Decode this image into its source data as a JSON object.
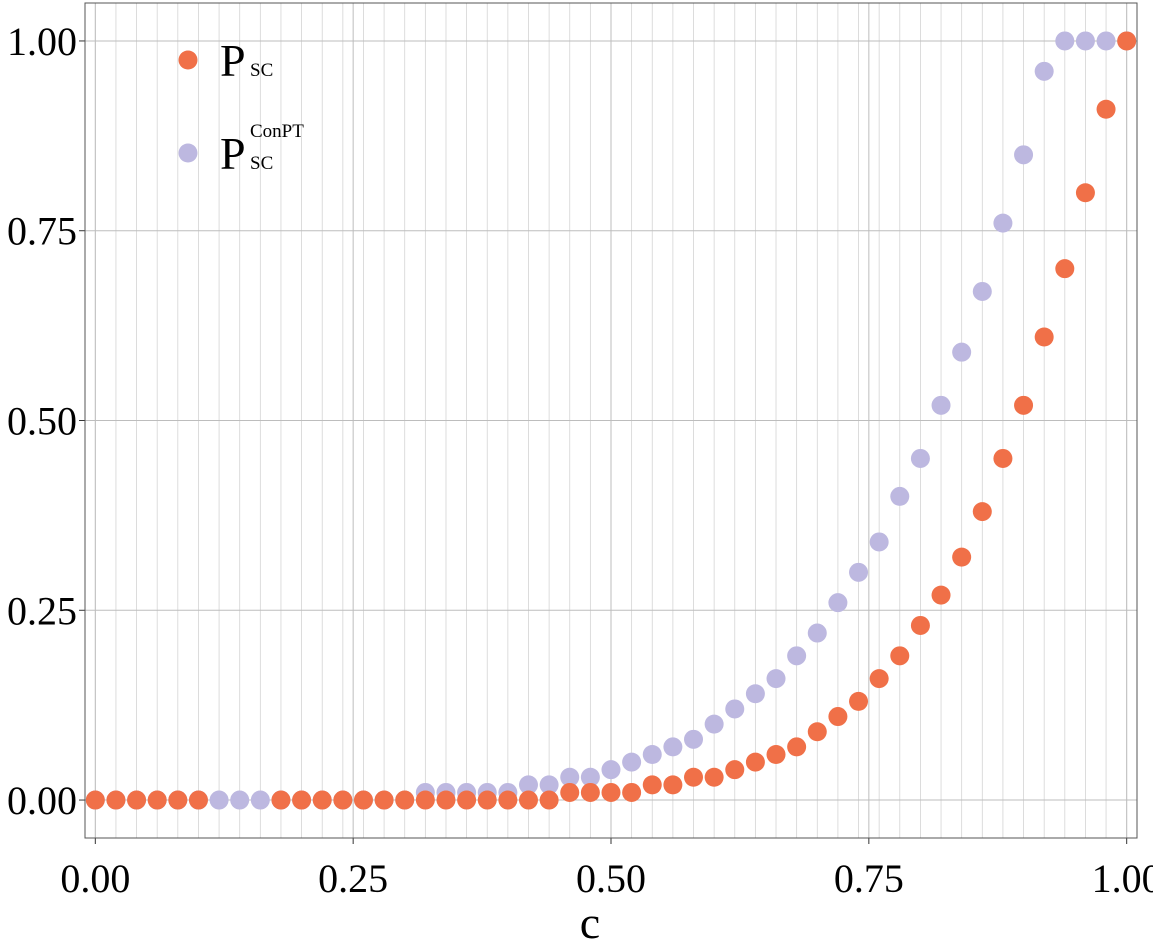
{
  "chart_data": {
    "type": "scatter",
    "x_label": "c",
    "x": [
      0,
      0.02,
      0.04,
      0.06,
      0.08,
      0.1,
      0.12,
      0.14,
      0.16,
      0.18,
      0.2,
      0.22,
      0.24,
      0.26,
      0.28,
      0.3,
      0.32,
      0.34,
      0.36,
      0.38,
      0.4,
      0.42,
      0.44,
      0.46,
      0.48,
      0.5,
      0.52,
      0.54,
      0.56,
      0.58,
      0.6,
      0.62,
      0.64,
      0.66,
      0.68,
      0.7,
      0.72,
      0.74,
      0.76,
      0.78,
      0.8,
      0.82,
      0.84,
      0.86,
      0.88,
      0.9,
      0.92,
      0.94,
      0.96,
      0.98,
      1.0
    ],
    "series": [
      {
        "name": "P",
        "name_sub": "SC",
        "color": "#bdb8e0",
        "values": [
          0,
          0,
          0,
          0,
          0,
          0,
          0,
          0,
          0,
          0,
          0,
          0,
          0,
          0,
          0,
          0,
          0.01,
          0.01,
          0.01,
          0.01,
          0.01,
          0.02,
          0.02,
          0.03,
          0.03,
          0.04,
          0.05,
          0.06,
          0.07,
          0.08,
          0.1,
          0.12,
          0.14,
          0.16,
          0.19,
          0.22,
          0.26,
          0.3,
          0.34,
          0.4,
          0.45,
          0.52,
          0.59,
          0.67,
          0.76,
          0.85,
          0.96,
          1.0,
          1.0,
          1.0,
          1.0
        ],
        "name_sup": "ConPT"
      },
      {
        "name": "P",
        "name_sub": "SC",
        "color": "#f07048",
        "values": [
          0,
          0,
          0,
          0,
          0,
          0,
          null,
          null,
          null,
          0,
          0,
          0,
          0,
          0,
          0,
          0,
          0,
          0,
          0,
          0,
          0,
          0,
          0,
          0.01,
          0.01,
          0.01,
          0.01,
          0.02,
          0.02,
          0.03,
          0.03,
          0.04,
          0.05,
          0.06,
          0.07,
          0.09,
          0.11,
          0.13,
          0.16,
          0.19,
          0.23,
          0.27,
          0.32,
          0.38,
          0.45,
          0.52,
          0.61,
          0.7,
          0.8,
          0.91,
          1.0
        ]
      }
    ],
    "xlim": [
      -0.01,
      1.01
    ],
    "ylim": [
      -0.05,
      1.05
    ],
    "xticks": [
      {
        "value": 0,
        "label": "0.00"
      },
      0.25,
      {
        "value": 0.5,
        "label": "0.50"
      },
      0.75,
      {
        "value": 1,
        "label": "1.00"
      }
    ],
    "yticks": [
      {
        "value": 0,
        "label": "0.00"
      },
      0.25,
      {
        "value": 0.5,
        "label": "0.50"
      },
      0.75,
      {
        "value": 1,
        "label": "1.00"
      }
    ],
    "grid": true,
    "legend": "top-left"
  }
}
